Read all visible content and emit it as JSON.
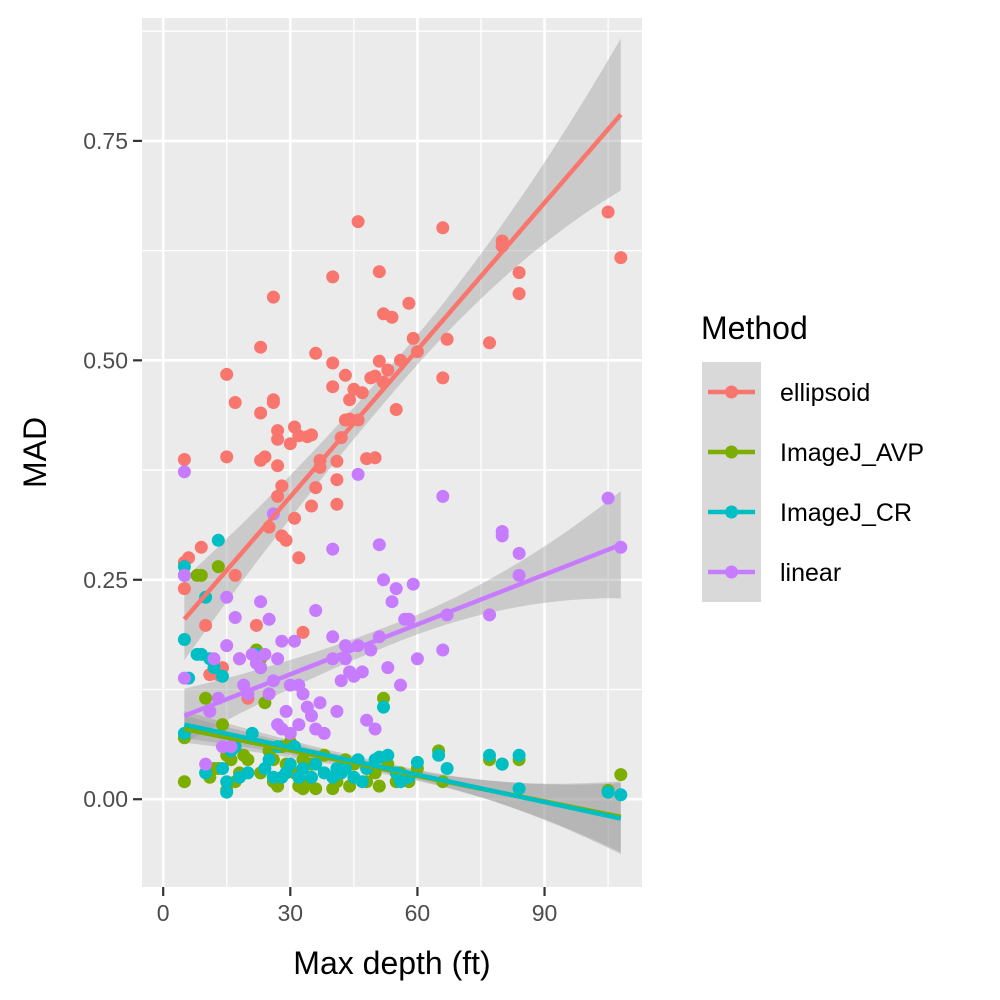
{
  "chart_data": {
    "type": "scatter",
    "xlabel": "Max depth (ft)",
    "ylabel": "MAD",
    "xlim": [
      -5,
      113
    ],
    "ylim": [
      -0.1,
      0.89
    ],
    "x_ticks": [
      0,
      30,
      60,
      90
    ],
    "x_tick_labels": [
      "0",
      "30",
      "60",
      "90"
    ],
    "y_ticks": [
      0.0,
      0.25,
      0.5,
      0.75
    ],
    "y_tick_labels": [
      "0.00",
      "0.25",
      "0.50",
      "0.75"
    ],
    "grid": true,
    "legend": {
      "title": "Method",
      "position": "right"
    },
    "series": [
      {
        "name": "ellipsoid",
        "color": "#F8766D",
        "fit": {
          "x0": 5,
          "y0": 0.205,
          "x1": 108,
          "y1": 0.78,
          "band0": 0.03,
          "band1": 0.07
        },
        "points": [
          [
            5,
            0.387
          ],
          [
            5,
            0.24
          ],
          [
            5,
            0.27
          ],
          [
            6,
            0.275
          ],
          [
            9,
            0.287
          ],
          [
            10,
            0.198
          ],
          [
            11,
            0.142
          ],
          [
            13,
            0.142
          ],
          [
            14,
            0.15
          ],
          [
            15,
            0.484
          ],
          [
            15,
            0.39
          ],
          [
            17,
            0.255
          ],
          [
            17,
            0.452
          ],
          [
            18,
            0.16
          ],
          [
            20,
            0.115
          ],
          [
            22,
            0.198
          ],
          [
            23,
            0.515
          ],
          [
            23,
            0.44
          ],
          [
            23,
            0.386
          ],
          [
            24,
            0.39
          ],
          [
            25,
            0.31
          ],
          [
            26,
            0.572
          ],
          [
            26,
            0.452
          ],
          [
            26,
            0.455
          ],
          [
            27,
            0.42
          ],
          [
            27,
            0.41
          ],
          [
            27,
            0.38
          ],
          [
            27,
            0.345
          ],
          [
            28,
            0.357
          ],
          [
            28,
            0.3
          ],
          [
            29,
            0.295
          ],
          [
            30,
            0.405
          ],
          [
            31,
            0.424
          ],
          [
            31,
            0.32
          ],
          [
            32,
            0.275
          ],
          [
            32,
            0.414
          ],
          [
            33,
            0.19
          ],
          [
            34,
            0.413
          ],
          [
            35,
            0.415
          ],
          [
            35,
            0.334
          ],
          [
            36,
            0.508
          ],
          [
            36,
            0.355
          ],
          [
            37,
            0.386
          ],
          [
            37,
            0.378
          ],
          [
            40,
            0.595
          ],
          [
            40,
            0.497
          ],
          [
            40,
            0.47
          ],
          [
            41,
            0.385
          ],
          [
            41,
            0.364
          ],
          [
            41,
            0.336
          ],
          [
            42,
            0.412
          ],
          [
            43,
            0.432
          ],
          [
            43,
            0.483
          ],
          [
            44,
            0.455
          ],
          [
            44,
            0.433
          ],
          [
            45,
            0.467
          ],
          [
            46,
            0.658
          ],
          [
            46,
            0.432
          ],
          [
            47,
            0.463
          ],
          [
            48,
            0.388
          ],
          [
            49,
            0.48
          ],
          [
            50,
            0.389
          ],
          [
            50,
            0.482
          ],
          [
            51,
            0.601
          ],
          [
            51,
            0.499
          ],
          [
            52,
            0.553
          ],
          [
            52,
            0.475
          ],
          [
            53,
            0.489
          ],
          [
            54,
            0.549
          ],
          [
            55,
            0.444
          ],
          [
            56,
            0.5
          ],
          [
            58,
            0.565
          ],
          [
            59,
            0.525
          ],
          [
            60,
            0.51
          ],
          [
            66,
            0.651
          ],
          [
            66,
            0.48
          ],
          [
            67,
            0.524
          ],
          [
            77,
            0.52
          ],
          [
            80,
            0.636
          ],
          [
            80,
            0.63
          ],
          [
            84,
            0.6
          ],
          [
            84,
            0.576
          ],
          [
            105,
            0.669
          ],
          [
            108,
            0.617
          ]
        ]
      },
      {
        "name": "ImageJ_AVP",
        "color": "#7CAE00",
        "fit": {
          "x0": 5,
          "y0": 0.08,
          "x1": 108,
          "y1": -0.02,
          "band0": 0.01,
          "band1": 0.035
        },
        "points": [
          [
            5,
            0.02
          ],
          [
            5,
            0.07
          ],
          [
            8,
            0.255
          ],
          [
            9,
            0.255
          ],
          [
            10,
            0.115
          ],
          [
            11,
            0.025
          ],
          [
            12,
            0.035
          ],
          [
            13,
            0.265
          ],
          [
            13,
            0.035
          ],
          [
            14,
            0.085
          ],
          [
            15,
            0.05
          ],
          [
            15,
            0.01
          ],
          [
            16,
            0.045
          ],
          [
            17,
            0.02
          ],
          [
            18,
            0.03
          ],
          [
            19,
            0.05
          ],
          [
            20,
            0.045
          ],
          [
            22,
            0.17
          ],
          [
            23,
            0.16
          ],
          [
            23,
            0.03
          ],
          [
            24,
            0.11
          ],
          [
            25,
            0.055
          ],
          [
            26,
            0.02
          ],
          [
            26,
            0.045
          ],
          [
            27,
            0.015
          ],
          [
            28,
            0.06
          ],
          [
            29,
            0.04
          ],
          [
            30,
            0.065
          ],
          [
            31,
            0.03
          ],
          [
            32,
            0.015
          ],
          [
            33,
            0.045
          ],
          [
            33,
            0.012
          ],
          [
            34,
            0.02
          ],
          [
            35,
            0.04
          ],
          [
            36,
            0.012
          ],
          [
            38,
            0.05
          ],
          [
            40,
            0.012
          ],
          [
            41,
            0.02
          ],
          [
            42,
            0.03
          ],
          [
            43,
            0.045
          ],
          [
            44,
            0.015
          ],
          [
            45,
            0.04
          ],
          [
            48,
            0.02
          ],
          [
            50,
            0.03
          ],
          [
            51,
            0.015
          ],
          [
            52,
            0.115
          ],
          [
            53,
            0.04
          ],
          [
            55,
            0.02
          ],
          [
            56,
            0.03
          ],
          [
            58,
            0.02
          ],
          [
            60,
            0.035
          ],
          [
            65,
            0.055
          ],
          [
            66,
            0.02
          ],
          [
            77,
            0.045
          ],
          [
            80,
            0.04
          ],
          [
            84,
            0.045
          ],
          [
            105,
            0.01
          ],
          [
            108,
            0.028
          ]
        ]
      },
      {
        "name": "ImageJ_CR",
        "color": "#00BFC4",
        "fit": {
          "x0": 5,
          "y0": 0.085,
          "x1": 108,
          "y1": -0.022,
          "band0": 0.01,
          "band1": 0.035
        },
        "points": [
          [
            5,
            0.265
          ],
          [
            5,
            0.255
          ],
          [
            5,
            0.182
          ],
          [
            5,
            0.075
          ],
          [
            6,
            0.138
          ],
          [
            8,
            0.165
          ],
          [
            9,
            0.165
          ],
          [
            10,
            0.23
          ],
          [
            10,
            0.03
          ],
          [
            11,
            0.16
          ],
          [
            12,
            0.15
          ],
          [
            13,
            0.295
          ],
          [
            14,
            0.14
          ],
          [
            14,
            0.035
          ],
          [
            15,
            0.02
          ],
          [
            15,
            0.008
          ],
          [
            16,
            0.055
          ],
          [
            17,
            0.06
          ],
          [
            18,
            0.025
          ],
          [
            20,
            0.03
          ],
          [
            21,
            0.075
          ],
          [
            22,
            0.165
          ],
          [
            23,
            0.15
          ],
          [
            24,
            0.035
          ],
          [
            25,
            0.045
          ],
          [
            26,
            0.025
          ],
          [
            27,
            0.06
          ],
          [
            28,
            0.025
          ],
          [
            29,
            0.03
          ],
          [
            30,
            0.04
          ],
          [
            31,
            0.06
          ],
          [
            32,
            0.025
          ],
          [
            33,
            0.035
          ],
          [
            35,
            0.025
          ],
          [
            36,
            0.04
          ],
          [
            38,
            0.03
          ],
          [
            40,
            0.025
          ],
          [
            41,
            0.035
          ],
          [
            42,
            0.03
          ],
          [
            43,
            0.035
          ],
          [
            45,
            0.025
          ],
          [
            46,
            0.045
          ],
          [
            47,
            0.02
          ],
          [
            48,
            0.035
          ],
          [
            50,
            0.045
          ],
          [
            51,
            0.048
          ],
          [
            52,
            0.105
          ],
          [
            53,
            0.05
          ],
          [
            55,
            0.03
          ],
          [
            56,
            0.02
          ],
          [
            58,
            0.025
          ],
          [
            60,
            0.042
          ],
          [
            65,
            0.05
          ],
          [
            67,
            0.035
          ],
          [
            77,
            0.05
          ],
          [
            80,
            0.04
          ],
          [
            84,
            0.05
          ],
          [
            84,
            0.012
          ],
          [
            105,
            0.008
          ],
          [
            108,
            0.005
          ]
        ]
      },
      {
        "name": "linear",
        "color": "#C77CFF",
        "fit": {
          "x0": 5,
          "y0": 0.095,
          "x1": 108,
          "y1": 0.29,
          "band0": 0.02,
          "band1": 0.05
        },
        "points": [
          [
            5,
            0.373
          ],
          [
            5,
            0.255
          ],
          [
            5,
            0.138
          ],
          [
            10,
            0.04
          ],
          [
            11,
            0.1
          ],
          [
            12,
            0.16
          ],
          [
            13,
            0.115
          ],
          [
            14,
            0.06
          ],
          [
            15,
            0.23
          ],
          [
            15,
            0.175
          ],
          [
            16,
            0.06
          ],
          [
            17,
            0.207
          ],
          [
            18,
            0.16
          ],
          [
            19,
            0.13
          ],
          [
            20,
            0.12
          ],
          [
            21,
            0.165
          ],
          [
            22,
            0.155
          ],
          [
            23,
            0.225
          ],
          [
            23,
            0.15
          ],
          [
            24,
            0.165
          ],
          [
            25,
            0.205
          ],
          [
            25,
            0.12
          ],
          [
            26,
            0.135
          ],
          [
            26,
            0.325
          ],
          [
            27,
            0.16
          ],
          [
            27,
            0.085
          ],
          [
            28,
            0.18
          ],
          [
            28,
            0.08
          ],
          [
            29,
            0.1
          ],
          [
            30,
            0.13
          ],
          [
            30,
            0.075
          ],
          [
            31,
            0.18
          ],
          [
            32,
            0.13
          ],
          [
            32,
            0.085
          ],
          [
            33,
            0.12
          ],
          [
            34,
            0.105
          ],
          [
            35,
            0.095
          ],
          [
            36,
            0.215
          ],
          [
            36,
            0.08
          ],
          [
            37,
            0.11
          ],
          [
            38,
            0.075
          ],
          [
            40,
            0.185
          ],
          [
            40,
            0.285
          ],
          [
            40,
            0.16
          ],
          [
            41,
            0.1
          ],
          [
            42,
            0.135
          ],
          [
            43,
            0.16
          ],
          [
            43,
            0.175
          ],
          [
            44,
            0.145
          ],
          [
            45,
            0.14
          ],
          [
            46,
            0.37
          ],
          [
            46,
            0.175
          ],
          [
            47,
            0.145
          ],
          [
            48,
            0.09
          ],
          [
            49,
            0.17
          ],
          [
            50,
            0.08
          ],
          [
            51,
            0.185
          ],
          [
            51,
            0.29
          ],
          [
            52,
            0.25
          ],
          [
            53,
            0.15
          ],
          [
            54,
            0.225
          ],
          [
            55,
            0.24
          ],
          [
            56,
            0.13
          ],
          [
            57,
            0.205
          ],
          [
            58,
            0.205
          ],
          [
            59,
            0.245
          ],
          [
            60,
            0.16
          ],
          [
            66,
            0.345
          ],
          [
            66,
            0.17
          ],
          [
            67,
            0.21
          ],
          [
            77,
            0.21
          ],
          [
            80,
            0.305
          ],
          [
            80,
            0.3
          ],
          [
            84,
            0.255
          ],
          [
            84,
            0.28
          ],
          [
            105,
            0.343
          ],
          [
            108,
            0.287
          ]
        ]
      }
    ]
  }
}
